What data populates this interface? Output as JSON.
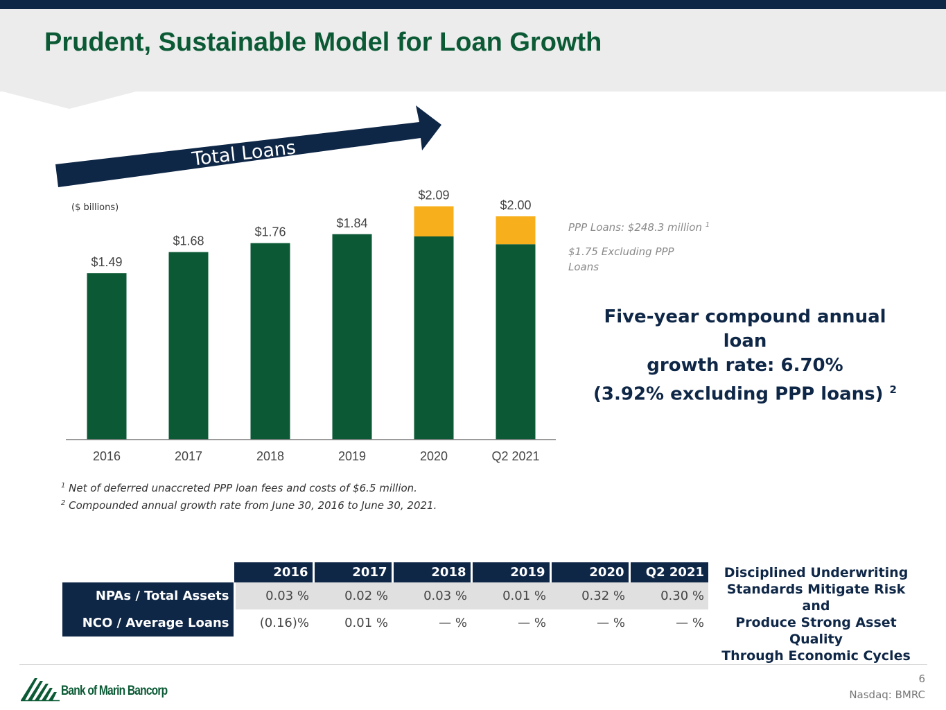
{
  "title": "Prudent, Sustainable Model for Loan Growth",
  "banner_label": "Total Loans",
  "units_label": "($ billions)",
  "colors": {
    "navy": "#0f2747",
    "green": "#0b5a35",
    "ppp_gold": "#f8af1c",
    "gray_text": "#8a8a8a"
  },
  "chart_data": {
    "type": "bar",
    "stacked": true,
    "title": "Total Loans",
    "ylabel": "($ billions)",
    "xlabel": "",
    "categories": [
      "2016",
      "2017",
      "2018",
      "2019",
      "2020",
      "Q2 2021"
    ],
    "series": [
      {
        "name": "Loans excluding PPP",
        "color": "#0b5a35",
        "values": [
          1.49,
          1.68,
          1.76,
          1.84,
          1.82,
          1.75
        ]
      },
      {
        "name": "PPP Loans",
        "color": "#f8af1c",
        "values": [
          0,
          0,
          0,
          0,
          0.27,
          0.25
        ]
      }
    ],
    "totals": [
      1.49,
      1.68,
      1.76,
      1.84,
      2.09,
      2.0
    ],
    "total_labels": [
      "$1.49",
      "$1.68",
      "$1.76",
      "$1.84",
      "$2.09",
      "$2.00"
    ],
    "ylim": [
      0,
      2.15
    ],
    "grid": false,
    "legend": "none"
  },
  "ppp_note": {
    "line1": "PPP Loans: $248.3 million",
    "line1_sup": "1",
    "line2a": "$1.75 Excluding PPP",
    "line2b": "Loans"
  },
  "cagr": {
    "line1": "Five-year compound annual loan",
    "line2": "growth rate: 6.70%",
    "line3": "(3.92% excluding PPP loans)",
    "sup": "2"
  },
  "footnotes": [
    {
      "sup": "1",
      "text": "Net of deferred unaccreted PPP loan fees and costs of $6.5 million."
    },
    {
      "sup": "2",
      "text": "Compounded annual growth rate from June 30, 2016 to June 30, 2021."
    }
  ],
  "metrics": {
    "columns": [
      "2016",
      "2017",
      "2018",
      "2019",
      "2020",
      "Q2 2021"
    ],
    "rows": [
      {
        "label": "NPAs / Total Assets",
        "values": [
          "0.03 %",
          "0.02 %",
          "0.03 %",
          "0.01 %",
          "0.32 %",
          "0.30 %"
        ]
      },
      {
        "label": "NCO / Average Loans",
        "values": [
          "(0.16)%",
          "0.01 %",
          "— %",
          "— %",
          "— %",
          "— %"
        ]
      }
    ]
  },
  "metrics_caption": {
    "line1": "Disciplined Underwriting",
    "line2": "Standards Mitigate Risk and",
    "line3": "Produce Strong Asset Quality",
    "line4": "Through Economic Cycles"
  },
  "footer": {
    "company": "Bank of Marin Bancorp",
    "page": "6",
    "ticker": "Nasdaq: BMRC"
  }
}
